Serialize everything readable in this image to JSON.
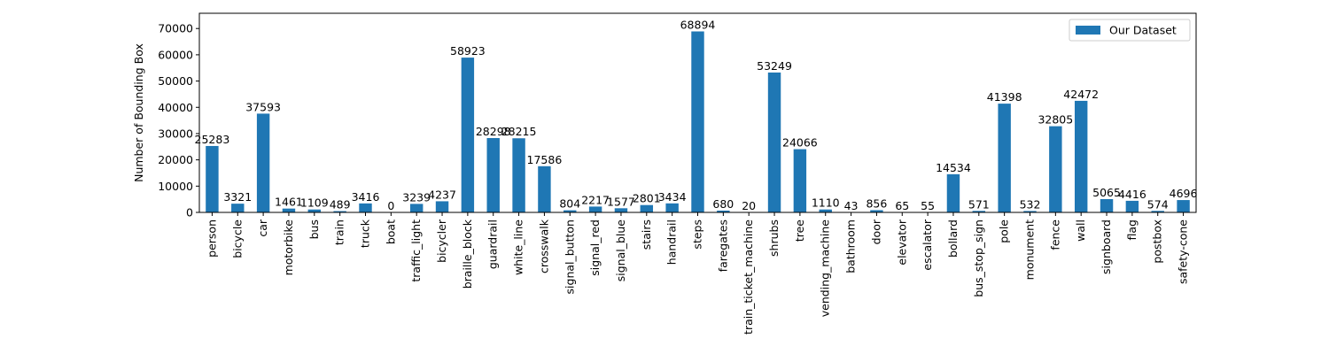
{
  "chart_data": {
    "type": "bar",
    "ylabel": "Number of Bounding Box",
    "xlabel": "",
    "ylim": [
      0,
      75800
    ],
    "yticks": [
      0,
      10000,
      20000,
      30000,
      40000,
      50000,
      60000,
      70000
    ],
    "legend_position": "top-right",
    "grid": false,
    "bar_color": "#1f77b4",
    "categories": [
      "person",
      "bicycle",
      "car",
      "motorbike",
      "bus",
      "train",
      "truck",
      "boat",
      "traffic_light",
      "bicycler",
      "braille_block",
      "guardrail",
      "white_line",
      "crosswalk",
      "signal_button",
      "signal_red",
      "signal_blue",
      "stairs",
      "handrail",
      "steps",
      "faregates",
      "train_ticket_machine",
      "shrubs",
      "tree",
      "vending_machine",
      "bathroom",
      "door",
      "elevator",
      "escalator",
      "bollard",
      "bus_stop_sign",
      "pole",
      "monument",
      "fence",
      "wall",
      "signboard",
      "flag",
      "postbox",
      "safety-cone"
    ],
    "series": [
      {
        "name": "Our Dataset",
        "values": [
          25283,
          3321,
          37593,
          1461,
          1109,
          489,
          3416,
          0,
          3239,
          4237,
          58923,
          28298,
          28215,
          17586,
          804,
          2217,
          1577,
          2801,
          3434,
          68894,
          680,
          20,
          53249,
          24066,
          1110,
          43,
          856,
          65,
          55,
          14534,
          571,
          41398,
          532,
          32805,
          42472,
          5065,
          4416,
          574,
          4696
        ]
      }
    ]
  }
}
